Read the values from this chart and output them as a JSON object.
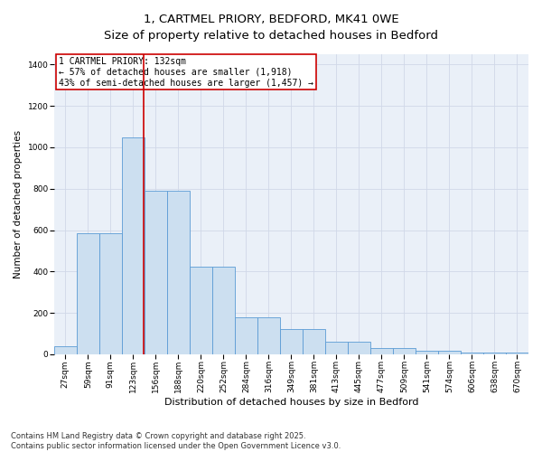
{
  "title_line1": "1, CARTMEL PRIORY, BEDFORD, MK41 0WE",
  "title_line2": "Size of property relative to detached houses in Bedford",
  "xlabel": "Distribution of detached houses by size in Bedford",
  "ylabel": "Number of detached properties",
  "categories": [
    "27sqm",
    "59sqm",
    "91sqm",
    "123sqm",
    "156sqm",
    "188sqm",
    "220sqm",
    "252sqm",
    "284sqm",
    "316sqm",
    "349sqm",
    "381sqm",
    "413sqm",
    "445sqm",
    "477sqm",
    "509sqm",
    "541sqm",
    "574sqm",
    "606sqm",
    "638sqm",
    "670sqm"
  ],
  "values": [
    40,
    585,
    585,
    1050,
    790,
    790,
    425,
    425,
    178,
    178,
    120,
    120,
    60,
    60,
    30,
    30,
    18,
    15,
    10,
    8,
    8
  ],
  "bar_color": "#ccdff0",
  "bar_edge_color": "#5b9bd5",
  "annotation_text": "1 CARTMEL PRIORY: 132sqm\n← 57% of detached houses are smaller (1,918)\n43% of semi-detached houses are larger (1,457) →",
  "vline_x_index": 3.48,
  "vline_color": "#cc0000",
  "annotation_box_color": "#cc0000",
  "ylim": [
    0,
    1450
  ],
  "yticks": [
    0,
    200,
    400,
    600,
    800,
    1000,
    1200,
    1400
  ],
  "grid_color": "#d0d8e8",
  "bg_color": "#eaf0f8",
  "footer_text": "Contains HM Land Registry data © Crown copyright and database right 2025.\nContains public sector information licensed under the Open Government Licence v3.0.",
  "title_fontsize": 9.5,
  "xlabel_fontsize": 8,
  "ylabel_fontsize": 7.5,
  "tick_fontsize": 6.5,
  "annotation_fontsize": 7,
  "footer_fontsize": 6
}
